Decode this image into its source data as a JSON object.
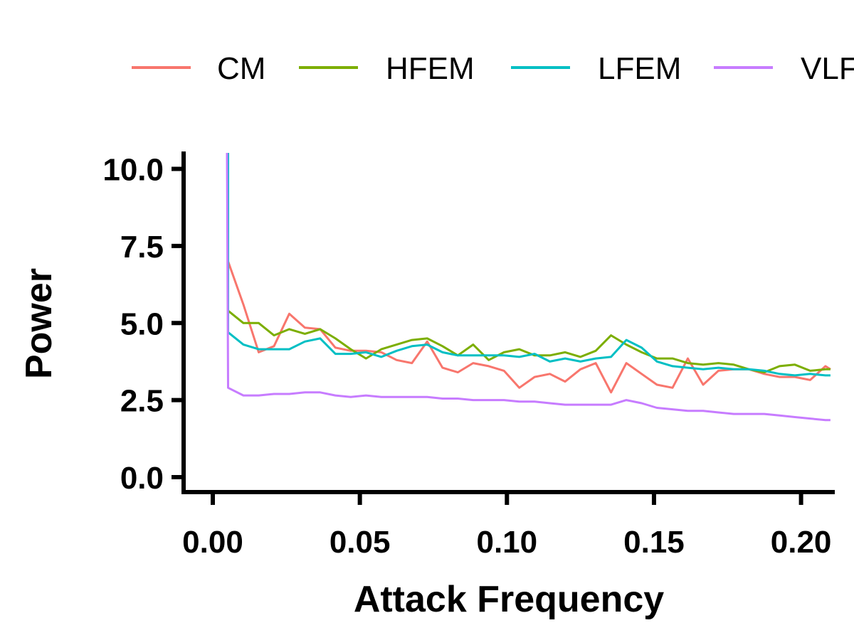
{
  "chart_data": {
    "type": "line",
    "title": "",
    "xlabel": "Attack Frequency",
    "ylabel": "Power",
    "xlim": [
      -0.01,
      0.21
    ],
    "ylim": [
      -0.5,
      10.5
    ],
    "x_ticks": [
      "0.00",
      "0.05",
      "0.10",
      "0.15",
      "0.20"
    ],
    "y_ticks": [
      "0.0",
      "2.5",
      "5.0",
      "7.5",
      "10.0"
    ],
    "grid": false,
    "legend_position": "top",
    "series": [
      {
        "name": "CM",
        "color": "#F8766D",
        "x": [
          0.0052,
          0.0104,
          0.0156,
          0.0208,
          0.026,
          0.0313,
          0.0365,
          0.0417,
          0.0469,
          0.0521,
          0.0573,
          0.0625,
          0.0677,
          0.0729,
          0.0781,
          0.0833,
          0.0885,
          0.0938,
          0.099,
          0.1042,
          0.1094,
          0.1146,
          0.1198,
          0.125,
          0.1302,
          0.1354,
          0.1406,
          0.1458,
          0.151,
          0.1563,
          0.1615,
          0.1667,
          0.1719,
          0.1771,
          0.1823,
          0.1875,
          0.1927,
          0.1979,
          0.2031,
          0.2083,
          0.21
        ],
        "y": [
          7.0,
          5.6,
          4.05,
          4.25,
          5.3,
          4.85,
          4.8,
          4.2,
          4.1,
          4.1,
          4.05,
          3.8,
          3.7,
          4.4,
          3.55,
          3.4,
          3.7,
          3.6,
          3.45,
          2.9,
          3.25,
          3.35,
          3.1,
          3.5,
          3.7,
          2.75,
          3.7,
          3.35,
          3.0,
          2.9,
          3.85,
          3.0,
          3.45,
          3.5,
          3.5,
          3.35,
          3.25,
          3.25,
          3.15,
          3.6,
          3.5
        ]
      },
      {
        "name": "HFEM",
        "color": "#7CAE00",
        "x": [
          0.0052,
          0.0104,
          0.0156,
          0.0208,
          0.026,
          0.0313,
          0.0365,
          0.0417,
          0.0469,
          0.0521,
          0.0573,
          0.0625,
          0.0677,
          0.0729,
          0.0781,
          0.0833,
          0.0885,
          0.0938,
          0.099,
          0.1042,
          0.1094,
          0.1146,
          0.1198,
          0.125,
          0.1302,
          0.1354,
          0.1406,
          0.1458,
          0.151,
          0.1563,
          0.1615,
          0.1667,
          0.1719,
          0.1771,
          0.1823,
          0.1875,
          0.1927,
          0.1979,
          0.2031,
          0.2083,
          0.21
        ],
        "y": [
          5.4,
          5.0,
          5.0,
          4.6,
          4.8,
          4.65,
          4.8,
          4.5,
          4.15,
          3.85,
          4.15,
          4.3,
          4.45,
          4.5,
          4.25,
          3.95,
          4.3,
          3.8,
          4.05,
          4.15,
          3.95,
          3.95,
          4.05,
          3.9,
          4.1,
          4.6,
          4.3,
          4.05,
          3.85,
          3.85,
          3.7,
          3.65,
          3.7,
          3.65,
          3.5,
          3.4,
          3.6,
          3.65,
          3.45,
          3.5,
          3.5
        ]
      },
      {
        "name": "LFEM",
        "color": "#00BFC4",
        "x": [
          0.0052,
          0.0104,
          0.0156,
          0.0208,
          0.026,
          0.0313,
          0.0365,
          0.0417,
          0.0469,
          0.0521,
          0.0573,
          0.0625,
          0.0677,
          0.0729,
          0.0781,
          0.0833,
          0.0885,
          0.0938,
          0.099,
          0.1042,
          0.1094,
          0.1146,
          0.1198,
          0.125,
          0.1302,
          0.1354,
          0.1406,
          0.1458,
          0.151,
          0.1563,
          0.1615,
          0.1667,
          0.1719,
          0.1771,
          0.1823,
          0.1875,
          0.1927,
          0.1979,
          0.2031,
          0.2083,
          0.21
        ],
        "y": [
          4.7,
          4.3,
          4.15,
          4.15,
          4.15,
          4.4,
          4.5,
          4.0,
          4.0,
          4.05,
          3.9,
          4.1,
          4.25,
          4.3,
          4.05,
          3.95,
          3.95,
          3.95,
          3.95,
          3.9,
          4.0,
          3.75,
          3.85,
          3.75,
          3.85,
          3.9,
          4.45,
          4.2,
          3.75,
          3.6,
          3.55,
          3.5,
          3.55,
          3.5,
          3.5,
          3.45,
          3.35,
          3.3,
          3.35,
          3.3,
          3.3
        ]
      },
      {
        "name": "VLFEM",
        "color": "#C77CFF",
        "x": [
          0.0052,
          0.0104,
          0.0156,
          0.0208,
          0.026,
          0.0313,
          0.0365,
          0.0417,
          0.0469,
          0.0521,
          0.0573,
          0.0625,
          0.0677,
          0.0729,
          0.0781,
          0.0833,
          0.0885,
          0.0938,
          0.099,
          0.1042,
          0.1094,
          0.1146,
          0.1198,
          0.125,
          0.1302,
          0.1354,
          0.1406,
          0.1458,
          0.151,
          0.1563,
          0.1615,
          0.1667,
          0.1719,
          0.1771,
          0.1823,
          0.1875,
          0.1927,
          0.1979,
          0.2031,
          0.2083,
          0.21
        ],
        "y": [
          2.9,
          2.65,
          2.65,
          2.7,
          2.7,
          2.75,
          2.75,
          2.65,
          2.6,
          2.65,
          2.6,
          2.6,
          2.6,
          2.6,
          2.55,
          2.55,
          2.5,
          2.5,
          2.5,
          2.45,
          2.45,
          2.4,
          2.35,
          2.35,
          2.35,
          2.35,
          2.5,
          2.4,
          2.25,
          2.2,
          2.15,
          2.15,
          2.1,
          2.05,
          2.05,
          2.05,
          2.0,
          1.95,
          1.9,
          1.85,
          1.85
        ]
      }
    ]
  }
}
